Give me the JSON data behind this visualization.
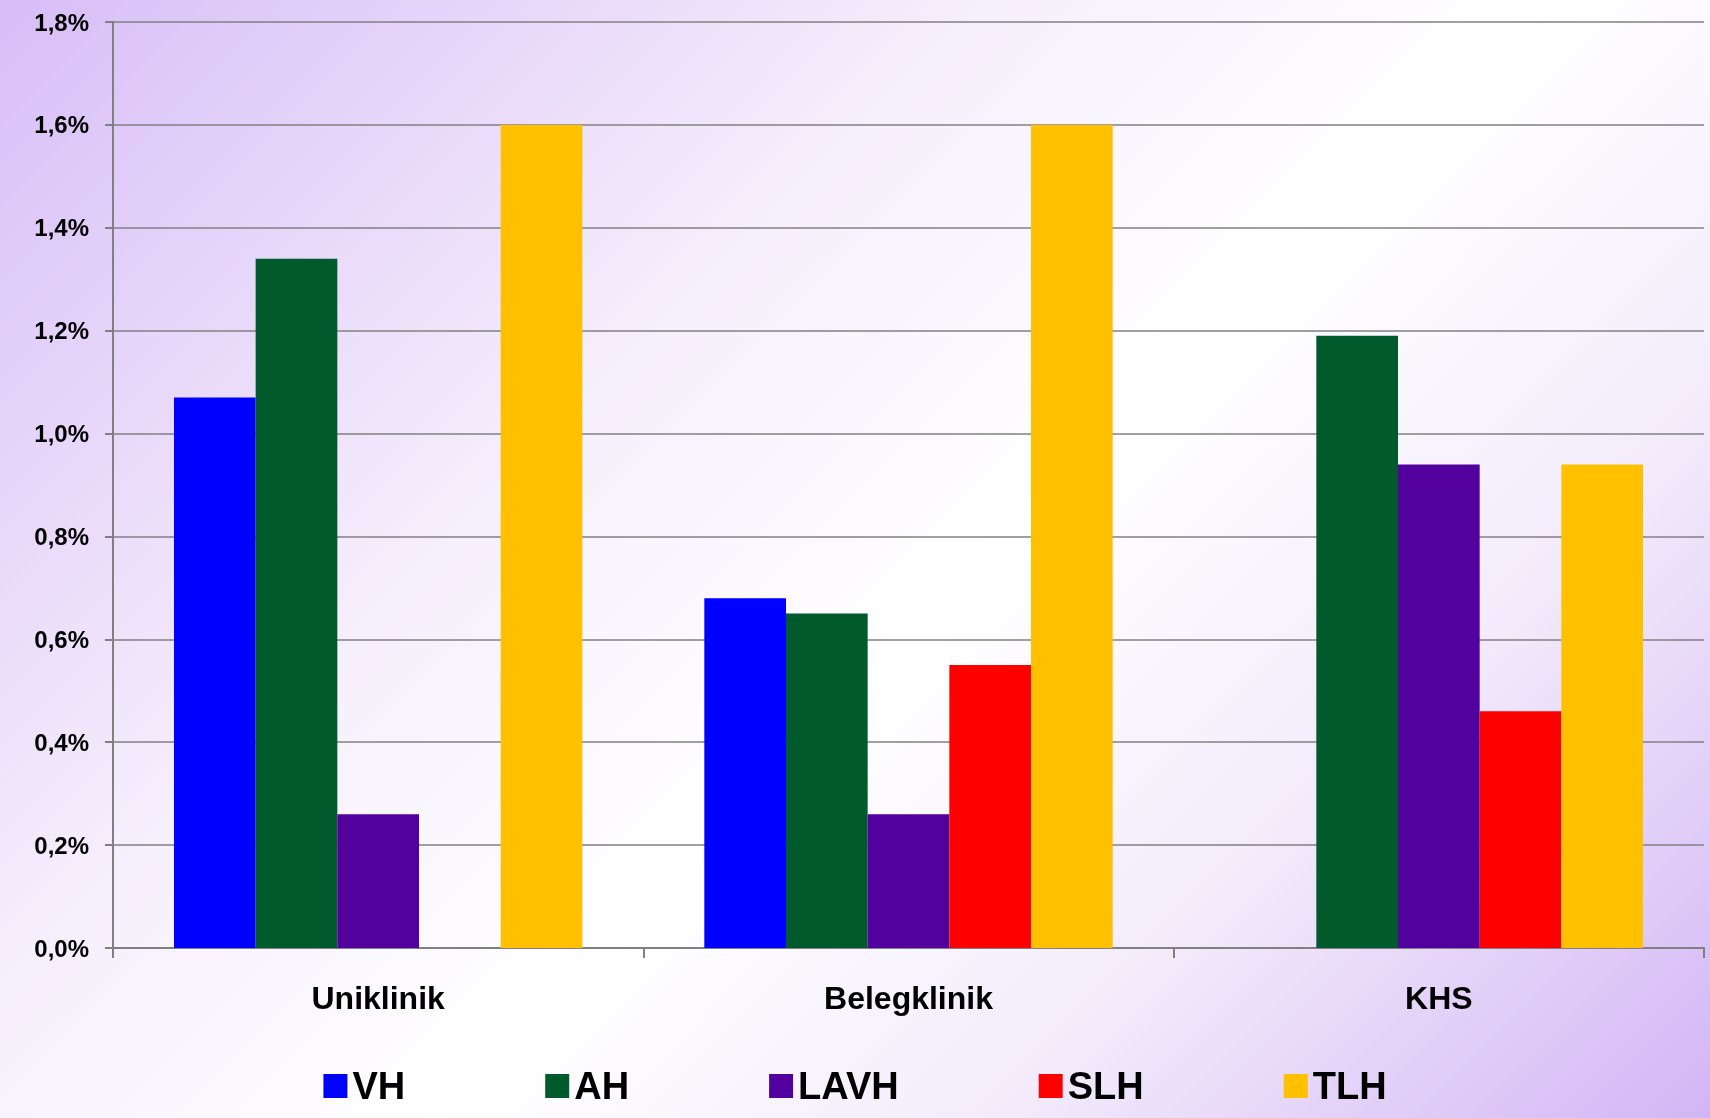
{
  "chart_data": {
    "type": "bar",
    "categories": [
      "Uniklinik",
      "Belegklinik",
      "KHS"
    ],
    "series": [
      {
        "name": "VH",
        "color": "#0000ff",
        "values": [
          1.07,
          0.68,
          0
        ]
      },
      {
        "name": "AH",
        "color": "#005a2b",
        "values": [
          1.34,
          0.65,
          1.19
        ]
      },
      {
        "name": "LAVH",
        "color": "#52009e",
        "values": [
          0.26,
          0.26,
          0.94
        ]
      },
      {
        "name": "SLH",
        "color": "#ff0000",
        "values": [
          0,
          0.55,
          0.46
        ]
      },
      {
        "name": "TLH",
        "color": "#ffc000",
        "values": [
          1.6,
          1.6,
          0.94
        ]
      }
    ],
    "ylim": [
      0,
      1.8
    ],
    "yticks": [
      {
        "value": 0,
        "label": "0,0%"
      },
      {
        "value": 0.2,
        "label": "0,2%"
      },
      {
        "value": 0.4,
        "label": "0,4%"
      },
      {
        "value": 0.6,
        "label": "0,6%"
      },
      {
        "value": 0.8,
        "label": "0,8%"
      },
      {
        "value": 1,
        "label": "1,0%"
      },
      {
        "value": 1.2,
        "label": "1,2%"
      },
      {
        "value": 1.4,
        "label": "1,4%"
      },
      {
        "value": 1.6,
        "label": "1,6%"
      },
      {
        "value": 1.8,
        "label": "1,8%"
      }
    ],
    "grid": "y",
    "legend": "bottom"
  }
}
